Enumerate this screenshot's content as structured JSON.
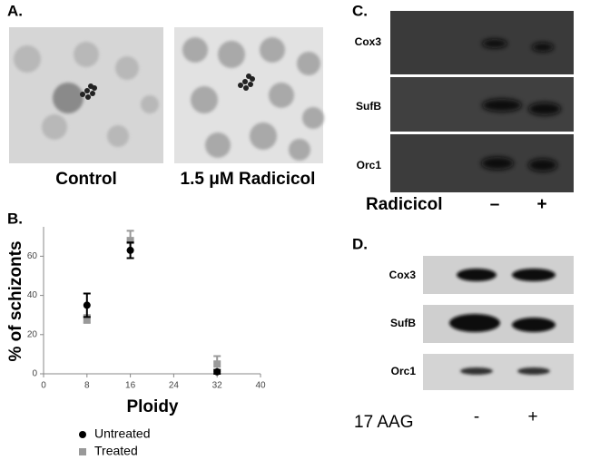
{
  "panel_a": {
    "label": "A.",
    "images": [
      "Control",
      "1.5 μM Radicicol"
    ]
  },
  "chart_data": {
    "type": "scatter",
    "panel_label": "B.",
    "x_label": "Ploidy",
    "y_label": "% of schizonts",
    "x": [
      8,
      16,
      32
    ],
    "series": [
      {
        "name": "Untreated",
        "color": "#000000",
        "values": [
          35,
          63,
          1
        ],
        "errors": [
          6,
          4,
          1
        ]
      },
      {
        "name": "Treated",
        "color": "#999999",
        "values": [
          28,
          68,
          5
        ],
        "errors": [
          2,
          5,
          4
        ]
      }
    ],
    "xlim": [
      0,
      40
    ],
    "xticks": [
      0,
      8,
      16,
      24,
      32,
      40
    ],
    "ylim": [
      0,
      75
    ],
    "yticks": [
      0,
      20,
      40,
      60
    ]
  },
  "panel_c": {
    "label": "C.",
    "rows": [
      "Cox3",
      "SufB",
      "Orc1"
    ],
    "treatment": "Radicicol",
    "lanes": [
      "–",
      "+"
    ]
  },
  "panel_d": {
    "label": "D.",
    "rows": [
      "Cox3",
      "SufB",
      "Orc1"
    ],
    "treatment": "17 AAG",
    "lanes": [
      "-",
      "+"
    ]
  }
}
